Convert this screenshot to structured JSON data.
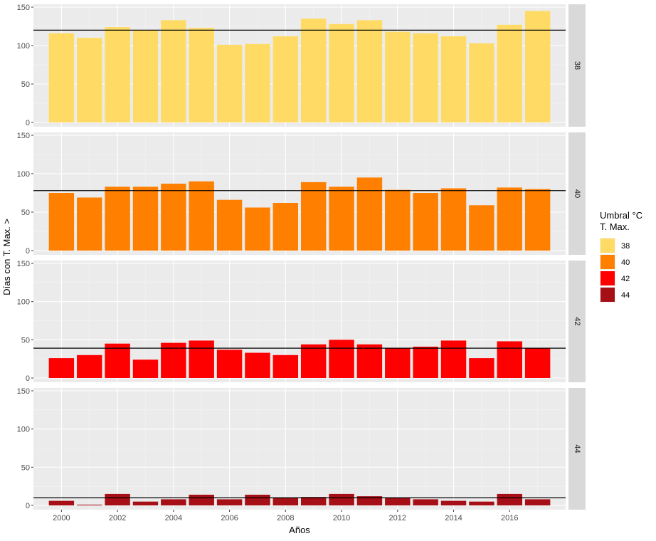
{
  "chart_data": {
    "type": "bar",
    "faceted": true,
    "facet_position": "right",
    "xlabel": "Años",
    "ylabel": "Días con T. Max. >",
    "ylim": [
      0,
      150
    ],
    "yticks": [
      0,
      50,
      100,
      150
    ],
    "xlim": [
      1999,
      2018
    ],
    "xticks": [
      2000,
      2002,
      2004,
      2006,
      2008,
      2010,
      2012,
      2014,
      2016
    ],
    "grid": true,
    "legend": {
      "title_line1": "Umbral °C",
      "title_line2": " T. Max.",
      "position": "right"
    },
    "x": [
      2000,
      2001,
      2002,
      2003,
      2004,
      2005,
      2006,
      2007,
      2008,
      2009,
      2010,
      2011,
      2012,
      2013,
      2014,
      2015,
      2016,
      2017
    ],
    "series": [
      {
        "name": "38",
        "color": "#FFDB65",
        "reference_line": 120,
        "values": [
          116,
          110,
          124,
          120,
          133,
          123,
          101,
          102,
          112,
          135,
          128,
          133,
          118,
          116,
          112,
          103,
          127,
          145
        ]
      },
      {
        "name": "40",
        "color": "#FF7F00",
        "reference_line": 78,
        "values": [
          75,
          69,
          83,
          83,
          87,
          90,
          66,
          56,
          62,
          89,
          83,
          95,
          79,
          75,
          81,
          59,
          82,
          80
        ]
      },
      {
        "name": "42",
        "color": "#FF0000",
        "reference_line": 39,
        "values": [
          26,
          30,
          45,
          24,
          46,
          49,
          37,
          33,
          30,
          44,
          50,
          44,
          39,
          41,
          49,
          26,
          48,
          39
        ]
      },
      {
        "name": "44",
        "color": "#A50F15",
        "reference_line": 10,
        "values": [
          6,
          1,
          15,
          5,
          8,
          14,
          8,
          14,
          10,
          11,
          15,
          12,
          10,
          8,
          6,
          5,
          15,
          8
        ]
      }
    ]
  }
}
